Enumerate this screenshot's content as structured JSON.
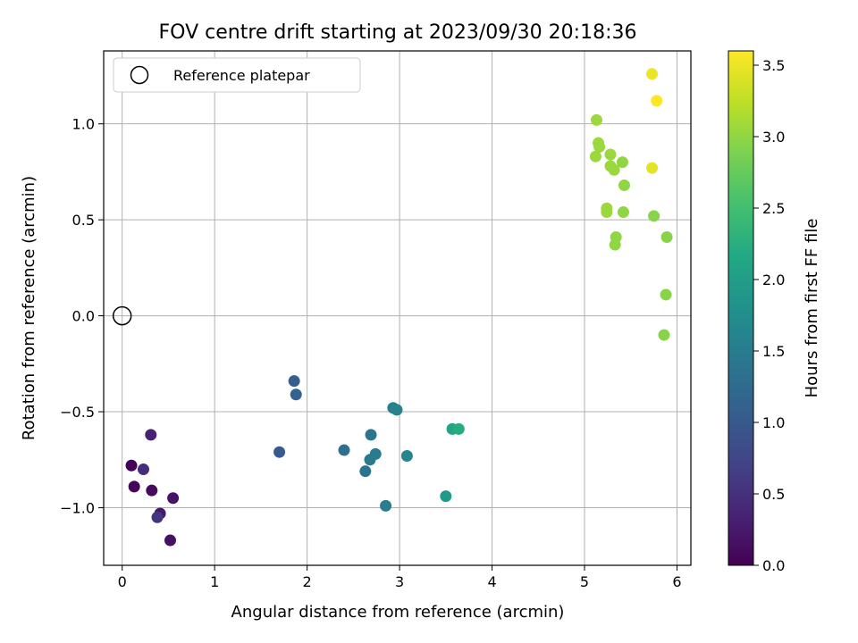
{
  "chart_data": {
    "type": "scatter",
    "title": "FOV centre drift starting at 2023/09/30 20:18:36",
    "xlabel": "Angular distance from reference (arcmin)",
    "ylabel": "Rotation from reference (arcmin)",
    "xlim": [
      -0.2,
      6.15
    ],
    "ylim": [
      -1.3,
      1.38
    ],
    "xticks": [
      0,
      1,
      2,
      3,
      4,
      5,
      6
    ],
    "xtick_labels": [
      "0",
      "1",
      "2",
      "3",
      "4",
      "5",
      "6"
    ],
    "yticks": [
      -1.0,
      -0.5,
      0.0,
      0.5,
      1.0
    ],
    "ytick_labels": [
      "−1.0",
      "−0.5",
      "0.0",
      "0.5",
      "1.0"
    ],
    "grid": true,
    "legend": {
      "placement": "upper-left",
      "entries": [
        {
          "label": "Reference platepar",
          "marker": "open-circle"
        }
      ]
    },
    "reference_point": {
      "x": 0.0,
      "y": 0.0
    },
    "colorbar": {
      "label": "Hours from first FF file",
      "colormap": "viridis",
      "range": [
        0.0,
        3.6
      ],
      "ticks": [
        0.0,
        0.5,
        1.0,
        1.5,
        2.0,
        2.5,
        3.0,
        3.5
      ],
      "tick_labels": [
        "0.0",
        "0.5",
        "1.0",
        "1.5",
        "2.0",
        "2.5",
        "3.0",
        "3.5"
      ]
    },
    "points": [
      {
        "x": 0.1,
        "y": -0.78,
        "c": 0.02
      },
      {
        "x": 0.13,
        "y": -0.89,
        "c": 0.05
      },
      {
        "x": 0.32,
        "y": -0.91,
        "c": 0.1
      },
      {
        "x": 0.52,
        "y": -1.17,
        "c": 0.15
      },
      {
        "x": 0.55,
        "y": -0.95,
        "c": 0.2
      },
      {
        "x": 0.41,
        "y": -1.03,
        "c": 0.25
      },
      {
        "x": 0.31,
        "y": -0.62,
        "c": 0.35
      },
      {
        "x": 0.23,
        "y": -0.8,
        "c": 0.45
      },
      {
        "x": 0.38,
        "y": -1.05,
        "c": 0.55
      },
      {
        "x": 1.7,
        "y": -0.71,
        "c": 1.0
      },
      {
        "x": 1.86,
        "y": -0.34,
        "c": 1.08
      },
      {
        "x": 1.88,
        "y": -0.41,
        "c": 1.12
      },
      {
        "x": 2.4,
        "y": -0.7,
        "c": 1.3
      },
      {
        "x": 2.63,
        "y": -0.81,
        "c": 1.38
      },
      {
        "x": 2.69,
        "y": -0.62,
        "c": 1.4
      },
      {
        "x": 2.68,
        "y": -0.75,
        "c": 1.45
      },
      {
        "x": 2.74,
        "y": -0.72,
        "c": 1.48
      },
      {
        "x": 2.85,
        "y": -0.99,
        "c": 1.52
      },
      {
        "x": 2.93,
        "y": -0.48,
        "c": 1.55
      },
      {
        "x": 2.97,
        "y": -0.49,
        "c": 1.58
      },
      {
        "x": 3.08,
        "y": -0.73,
        "c": 1.62
      },
      {
        "x": 3.5,
        "y": -0.94,
        "c": 1.95
      },
      {
        "x": 3.57,
        "y": -0.59,
        "c": 2.1
      },
      {
        "x": 3.64,
        "y": -0.59,
        "c": 2.2
      },
      {
        "x": 5.13,
        "y": 1.02,
        "c": 3.05
      },
      {
        "x": 5.15,
        "y": 0.9,
        "c": 3.05
      },
      {
        "x": 5.16,
        "y": 0.88,
        "c": 3.05
      },
      {
        "x": 5.12,
        "y": 0.83,
        "c": 3.05
      },
      {
        "x": 5.28,
        "y": 0.84,
        "c": 3.05
      },
      {
        "x": 5.28,
        "y": 0.78,
        "c": 3.05
      },
      {
        "x": 5.32,
        "y": 0.76,
        "c": 3.05
      },
      {
        "x": 5.41,
        "y": 0.8,
        "c": 3.0
      },
      {
        "x": 5.43,
        "y": 0.68,
        "c": 3.0
      },
      {
        "x": 5.24,
        "y": 0.56,
        "c": 3.05
      },
      {
        "x": 5.24,
        "y": 0.54,
        "c": 3.05
      },
      {
        "x": 5.42,
        "y": 0.54,
        "c": 3.0
      },
      {
        "x": 5.34,
        "y": 0.41,
        "c": 3.0
      },
      {
        "x": 5.33,
        "y": 0.37,
        "c": 3.0
      },
      {
        "x": 5.75,
        "y": 0.52,
        "c": 2.95
      },
      {
        "x": 5.89,
        "y": 0.41,
        "c": 2.95
      },
      {
        "x": 5.88,
        "y": 0.11,
        "c": 2.95
      },
      {
        "x": 5.86,
        "y": -0.1,
        "c": 2.95
      },
      {
        "x": 5.73,
        "y": 0.77,
        "c": 3.45
      },
      {
        "x": 5.73,
        "y": 1.26,
        "c": 3.5
      },
      {
        "x": 5.78,
        "y": 1.12,
        "c": 3.6
      }
    ]
  }
}
